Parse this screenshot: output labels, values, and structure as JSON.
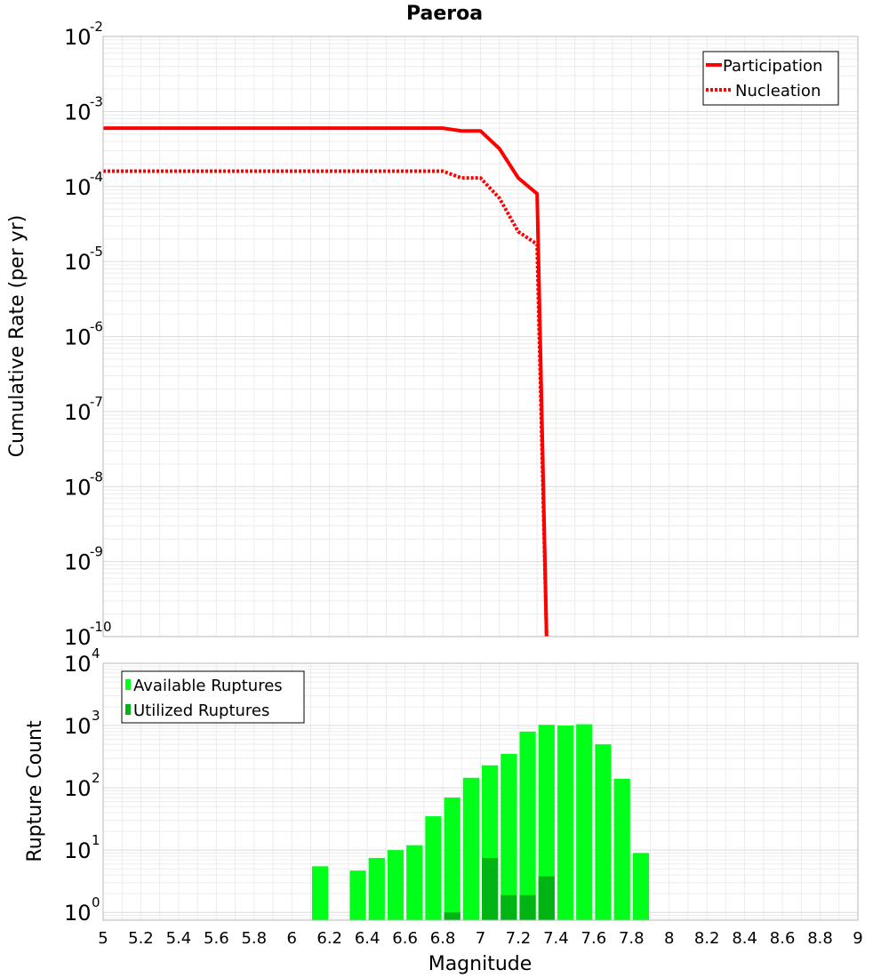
{
  "chart_data": [
    {
      "type": "line",
      "title": "Paeroa",
      "xlabel": "Magnitude",
      "ylabel": "Cumulative Rate (per yr)",
      "yscale": "log",
      "xlim": [
        5,
        9
      ],
      "ylim": [
        1e-10,
        0.01
      ],
      "ytick_exponents": [
        "-2",
        "-3",
        "-4",
        "-5",
        "-6",
        "-7",
        "-8",
        "-9",
        "-10"
      ],
      "ytick_base": "10",
      "grid": true,
      "legend": "top-right",
      "series": [
        {
          "name": "Participation",
          "style": "solid",
          "color": "#ff0000",
          "x": [
            5.0,
            6.8,
            6.9,
            7.0,
            7.1,
            7.2,
            7.3,
            7.35
          ],
          "y": [
            0.0006,
            0.0006,
            0.00055,
            0.00055,
            0.00032,
            0.00013,
            8e-05,
            1e-10
          ]
        },
        {
          "name": "Nucleation",
          "style": "dotted",
          "color": "#ff0000",
          "x": [
            5.0,
            6.8,
            6.9,
            7.0,
            7.1,
            7.2,
            7.3,
            7.35
          ],
          "y": [
            0.00016,
            0.00016,
            0.00013,
            0.00013,
            7e-05,
            2.5e-05,
            1.7e-05,
            1e-10
          ]
        }
      ]
    },
    {
      "type": "bar",
      "xlabel": "Magnitude",
      "ylabel": "Rupture Count",
      "yscale": "log",
      "xlim": [
        5,
        9
      ],
      "ylim": [
        0.75,
        10000
      ],
      "ytick_exponents": [
        "4",
        "3",
        "2",
        "1",
        "0"
      ],
      "ytick_base": "10",
      "xticks": [
        "5",
        "5.2",
        "5.4",
        "5.6",
        "5.8",
        "6",
        "6.2",
        "6.4",
        "6.6",
        "6.8",
        "7",
        "7.2",
        "7.4",
        "7.6",
        "7.8",
        "8",
        "8.2",
        "8.4",
        "8.6",
        "8.8",
        "9"
      ],
      "grid": true,
      "legend": "top-left",
      "bin_width": 0.1,
      "series": [
        {
          "name": "Available Ruptures",
          "color": "#00ff19",
          "x": [
            6.15,
            6.35,
            6.45,
            6.55,
            6.65,
            6.75,
            6.85,
            6.95,
            7.05,
            7.15,
            7.25,
            7.35,
            7.45,
            7.55,
            7.65,
            7.75,
            7.85
          ],
          "values": [
            5.5,
            4.7,
            7.5,
            10,
            12,
            35,
            70,
            145,
            230,
            350,
            800,
            1030,
            1000,
            1050,
            500,
            140,
            9
          ]
        },
        {
          "name": "Utilized Ruptures",
          "color": "#00b414",
          "x": [
            6.85,
            7.05,
            7.15,
            7.25,
            7.35
          ],
          "values": [
            1,
            7.5,
            1.9,
            1.9,
            3.8
          ]
        }
      ]
    }
  ]
}
